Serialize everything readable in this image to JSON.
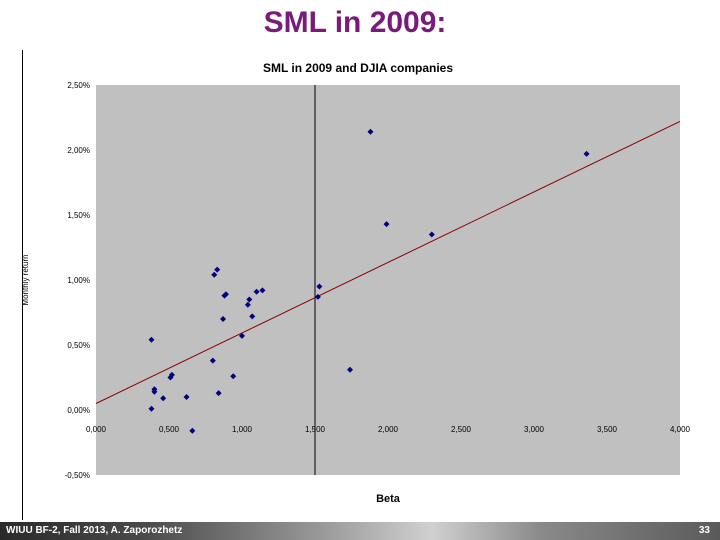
{
  "slide": {
    "title": "SML in 2009:",
    "footer_text": "WIUU BF-2, Fall 2013, A. Zaporozhetz",
    "page_number": "33"
  },
  "chart_data": {
    "type": "scatter",
    "title": "SML in 2009 and DJIA companies",
    "xlabel": "Beta",
    "ylabel": "Monthly return",
    "xlim": [
      0,
      4
    ],
    "ylim": [
      -0.005,
      0.025
    ],
    "x_ticks": [
      "0,000",
      "0,500",
      "1,000",
      "1,500",
      "2,000",
      "2,500",
      "3,000",
      "3,500",
      "4,000"
    ],
    "y_ticks": [
      "-0,50%",
      "0,00%",
      "0,50%",
      "1,00%",
      "1,50%",
      "2,00%",
      "2,50%"
    ],
    "vertical_line_x": 1.5,
    "sml_line": {
      "x": [
        0,
        4
      ],
      "y": [
        0.0005,
        0.0222
      ]
    },
    "points": [
      {
        "x": 0.38,
        "y": 0.0054
      },
      {
        "x": 0.38,
        "y": 0.0001
      },
      {
        "x": 0.4,
        "y": 0.0016
      },
      {
        "x": 0.4,
        "y": 0.0014
      },
      {
        "x": 0.46,
        "y": 0.0009
      },
      {
        "x": 0.51,
        "y": 0.0025
      },
      {
        "x": 0.52,
        "y": 0.0027
      },
      {
        "x": 0.62,
        "y": 0.001
      },
      {
        "x": 0.66,
        "y": -0.0016
      },
      {
        "x": 0.8,
        "y": 0.0038
      },
      {
        "x": 0.81,
        "y": 0.0104
      },
      {
        "x": 0.83,
        "y": 0.0108
      },
      {
        "x": 0.84,
        "y": 0.0013
      },
      {
        "x": 0.87,
        "y": 0.007
      },
      {
        "x": 0.88,
        "y": 0.0088
      },
      {
        "x": 0.89,
        "y": 0.0089
      },
      {
        "x": 0.94,
        "y": 0.0026
      },
      {
        "x": 1.0,
        "y": 0.0057
      },
      {
        "x": 1.04,
        "y": 0.0081
      },
      {
        "x": 1.05,
        "y": 0.0085
      },
      {
        "x": 1.07,
        "y": 0.0072
      },
      {
        "x": 1.1,
        "y": 0.0091
      },
      {
        "x": 1.14,
        "y": 0.0092
      },
      {
        "x": 1.52,
        "y": 0.0087
      },
      {
        "x": 1.53,
        "y": 0.0095
      },
      {
        "x": 1.74,
        "y": 0.0031
      },
      {
        "x": 1.88,
        "y": 0.0214
      },
      {
        "x": 1.99,
        "y": 0.0143
      },
      {
        "x": 2.3,
        "y": 0.0135
      },
      {
        "x": 3.36,
        "y": 0.0197
      }
    ],
    "colors": {
      "plot_bg": "#c0c0c0",
      "point": "#000080",
      "sml_line": "#8b0000",
      "vline": "#000000"
    }
  }
}
